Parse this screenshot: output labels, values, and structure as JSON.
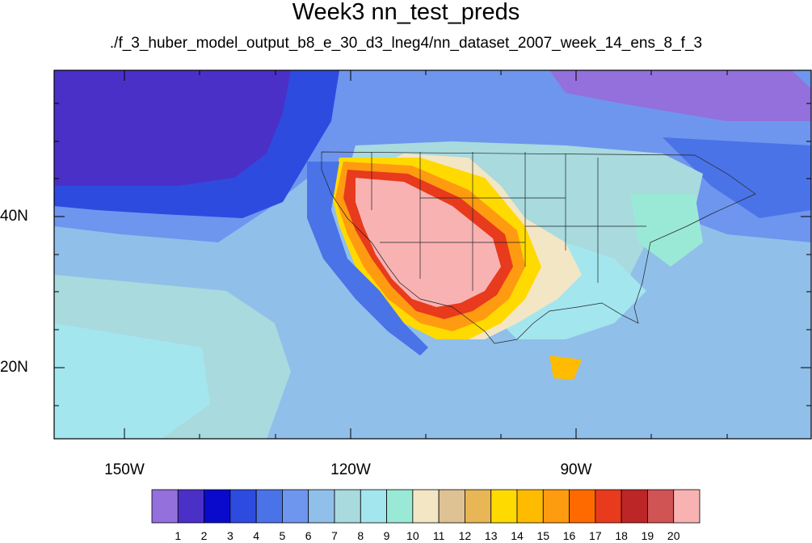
{
  "title": "Week3 nn_test_preds",
  "subtitle": "./f_3_huber_model_output_b8_e_30_d3_lneg4/nn_dataset_2007_week_14_ens_8_f_3",
  "map": {
    "projection": "cylindrical-equidistant",
    "lon_range": [
      -160,
      -61
    ],
    "lat_range": [
      11,
      59
    ],
    "lat_labels": [
      "40N",
      "20N"
    ],
    "lon_labels": [
      "150W",
      "120W",
      "90W"
    ]
  },
  "colorbar": {
    "labels": [
      "1",
      "2",
      "3",
      "4",
      "5",
      "6",
      "7",
      "8",
      "9",
      "10",
      "11",
      "12",
      "13",
      "14",
      "15",
      "16",
      "17",
      "18",
      "19",
      "20"
    ],
    "colors": [
      "#9370DB",
      "#4B30C8",
      "#0A0ACD",
      "#2E4BE0",
      "#4A73E8",
      "#6E96EE",
      "#90BFEA",
      "#A8DADE",
      "#A3E6EE",
      "#9AE9D6",
      "#F3E6C4",
      "#DFC293",
      "#E9B655",
      "#FFDA00",
      "#FFBB00",
      "#FF9B10",
      "#FF6A00",
      "#E83A1C",
      "#BD2626",
      "#D15454",
      "#F9B2B2"
    ]
  }
}
